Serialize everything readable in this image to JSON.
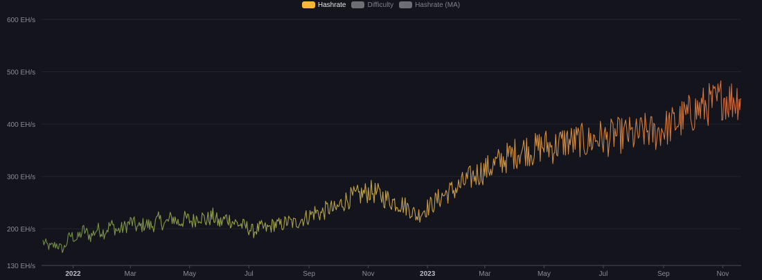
{
  "chart_data": {
    "type": "line",
    "legend": [
      {
        "name": "Hashrate",
        "color": "#f7b733",
        "active": true
      },
      {
        "name": "Difficulty",
        "color": "#6e6f75",
        "active": false
      },
      {
        "name": "Hashrate (MA)",
        "color": "#6e6f75",
        "active": false
      }
    ],
    "y_ticks": [
      {
        "value": 130,
        "label": "130 EH/s"
      },
      {
        "value": 200,
        "label": "200 EH/s"
      },
      {
        "value": 300,
        "label": "300 EH/s"
      },
      {
        "value": 400,
        "label": "400 EH/s"
      },
      {
        "value": 500,
        "label": "500 EH/s"
      },
      {
        "value": 600,
        "label": "600 EH/s"
      }
    ],
    "ylim": [
      130,
      600
    ],
    "xlim": [
      "2021-12-01",
      "2023-11-20"
    ],
    "x_ticks": [
      {
        "date": "2022-01-01",
        "label": "2022",
        "major": true
      },
      {
        "date": "2022-03-01",
        "label": "Mar",
        "major": false
      },
      {
        "date": "2022-05-01",
        "label": "May",
        "major": false
      },
      {
        "date": "2022-07-01",
        "label": "Jul",
        "major": false
      },
      {
        "date": "2022-09-01",
        "label": "Sep",
        "major": false
      },
      {
        "date": "2022-11-01",
        "label": "Nov",
        "major": false
      },
      {
        "date": "2023-01-01",
        "label": "2023",
        "major": true
      },
      {
        "date": "2023-03-01",
        "label": "Mar",
        "major": false
      },
      {
        "date": "2023-05-01",
        "label": "May",
        "major": false
      },
      {
        "date": "2023-07-01",
        "label": "Jul",
        "major": false
      },
      {
        "date": "2023-09-01",
        "label": "Sep",
        "major": false
      },
      {
        "date": "2023-11-01",
        "label": "Nov",
        "major": false
      }
    ],
    "color_stops": [
      "#6f8c45",
      "#93a04c",
      "#c9a349",
      "#d48a3e",
      "#d06a3f"
    ],
    "series": [
      {
        "name": "Hashrate",
        "points": [
          [
            "2021-12-01",
            175
          ],
          [
            "2021-12-08",
            165
          ],
          [
            "2021-12-15",
            170
          ],
          [
            "2021-12-22",
            160
          ],
          [
            "2021-12-29",
            188
          ],
          [
            "2022-01-05",
            180
          ],
          [
            "2022-01-12",
            198
          ],
          [
            "2022-01-19",
            185
          ],
          [
            "2022-01-26",
            200
          ],
          [
            "2022-02-02",
            193
          ],
          [
            "2022-02-09",
            208
          ],
          [
            "2022-02-16",
            196
          ],
          [
            "2022-02-23",
            203
          ],
          [
            "2022-03-02",
            214
          ],
          [
            "2022-03-09",
            201
          ],
          [
            "2022-03-16",
            210
          ],
          [
            "2022-03-23",
            205
          ],
          [
            "2022-03-30",
            217
          ],
          [
            "2022-04-06",
            209
          ],
          [
            "2022-04-13",
            222
          ],
          [
            "2022-04-20",
            211
          ],
          [
            "2022-04-27",
            220
          ],
          [
            "2022-05-04",
            214
          ],
          [
            "2022-05-11",
            226
          ],
          [
            "2022-05-18",
            216
          ],
          [
            "2022-05-25",
            224
          ],
          [
            "2022-06-01",
            210
          ],
          [
            "2022-06-08",
            221
          ],
          [
            "2022-06-15",
            213
          ],
          [
            "2022-06-22",
            208
          ],
          [
            "2022-06-29",
            203
          ],
          [
            "2022-07-06",
            195
          ],
          [
            "2022-07-13",
            203
          ],
          [
            "2022-07-20",
            200
          ],
          [
            "2022-07-27",
            209
          ],
          [
            "2022-08-03",
            207
          ],
          [
            "2022-08-10",
            214
          ],
          [
            "2022-08-17",
            210
          ],
          [
            "2022-08-24",
            218
          ],
          [
            "2022-08-31",
            223
          ],
          [
            "2022-09-07",
            232
          ],
          [
            "2022-09-14",
            229
          ],
          [
            "2022-09-21",
            240
          ],
          [
            "2022-09-28",
            235
          ],
          [
            "2022-10-05",
            250
          ],
          [
            "2022-10-12",
            258
          ],
          [
            "2022-10-19",
            262
          ],
          [
            "2022-10-26",
            266
          ],
          [
            "2022-11-02",
            272
          ],
          [
            "2022-11-09",
            268
          ],
          [
            "2022-11-16",
            261
          ],
          [
            "2022-11-23",
            255
          ],
          [
            "2022-11-30",
            250
          ],
          [
            "2022-12-07",
            246
          ],
          [
            "2022-12-14",
            238
          ],
          [
            "2022-12-21",
            224
          ],
          [
            "2022-12-28",
            236
          ],
          [
            "2023-01-04",
            244
          ],
          [
            "2023-01-11",
            255
          ],
          [
            "2023-01-18",
            265
          ],
          [
            "2023-01-25",
            272
          ],
          [
            "2023-02-01",
            278
          ],
          [
            "2023-02-08",
            289
          ],
          [
            "2023-02-15",
            298
          ],
          [
            "2023-02-22",
            306
          ],
          [
            "2023-03-01",
            312
          ],
          [
            "2023-03-08",
            319
          ],
          [
            "2023-03-15",
            327
          ],
          [
            "2023-03-22",
            334
          ],
          [
            "2023-03-29",
            341
          ],
          [
            "2023-04-05",
            348
          ],
          [
            "2023-04-12",
            352
          ],
          [
            "2023-04-19",
            349
          ],
          [
            "2023-04-26",
            356
          ],
          [
            "2023-05-03",
            360
          ],
          [
            "2023-05-10",
            355
          ],
          [
            "2023-05-17",
            362
          ],
          [
            "2023-05-24",
            368
          ],
          [
            "2023-05-31",
            365
          ],
          [
            "2023-06-07",
            370
          ],
          [
            "2023-06-14",
            364
          ],
          [
            "2023-06-21",
            371
          ],
          [
            "2023-06-28",
            375
          ],
          [
            "2023-07-05",
            370
          ],
          [
            "2023-07-12",
            380
          ],
          [
            "2023-07-19",
            378
          ],
          [
            "2023-07-26",
            382
          ],
          [
            "2023-08-02",
            376
          ],
          [
            "2023-08-09",
            384
          ],
          [
            "2023-08-16",
            388
          ],
          [
            "2023-08-23",
            381
          ],
          [
            "2023-08-30",
            390
          ],
          [
            "2023-09-06",
            395
          ],
          [
            "2023-09-13",
            402
          ],
          [
            "2023-09-20",
            410
          ],
          [
            "2023-09-27",
            418
          ],
          [
            "2023-10-04",
            425
          ],
          [
            "2023-10-11",
            431
          ],
          [
            "2023-10-18",
            438
          ],
          [
            "2023-10-25",
            440
          ],
          [
            "2023-11-01",
            452
          ],
          [
            "2023-11-08",
            446
          ],
          [
            "2023-11-15",
            450
          ],
          [
            "2023-11-20",
            448
          ]
        ]
      }
    ]
  }
}
